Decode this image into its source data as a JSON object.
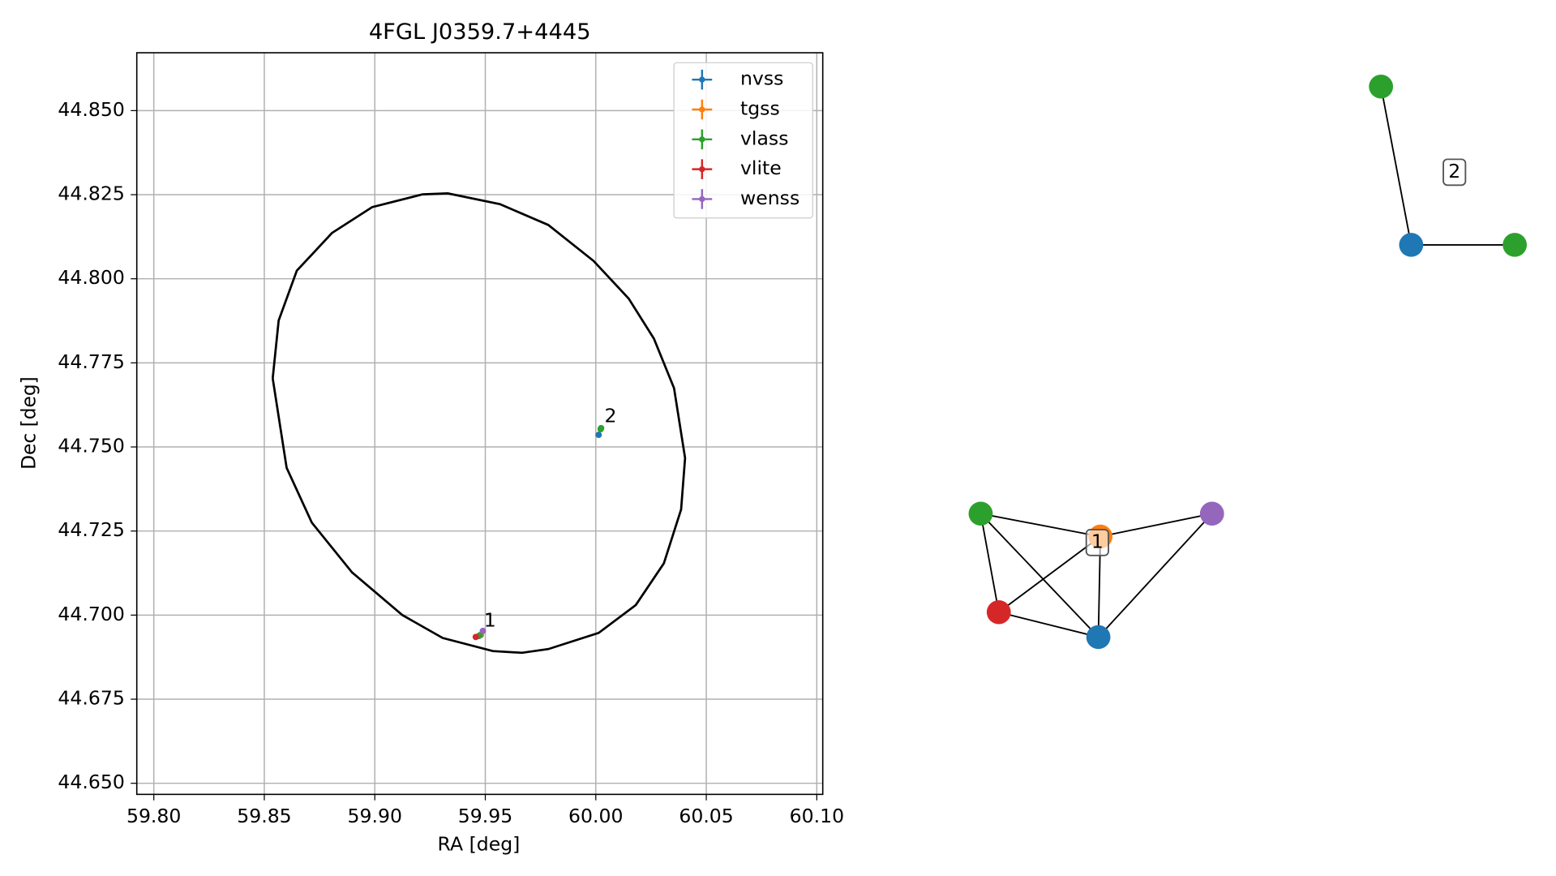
{
  "chart_data": [
    {
      "type": "scatter",
      "title": "4FGL J0359.7+4445",
      "x_label": "RA [deg]",
      "y_label": "Dec [deg]",
      "xlim": [
        59.7923,
        60.1027
      ],
      "ylim": [
        44.6467,
        44.8672
      ],
      "xticks": [
        {
          "value": 59.8,
          "label": "59.80"
        },
        {
          "value": 59.85,
          "label": "59.85"
        },
        {
          "value": 59.9,
          "label": "59.90"
        },
        {
          "value": 59.95,
          "label": "59.95"
        },
        {
          "value": 60.0,
          "label": "60.00"
        },
        {
          "value": 60.05,
          "label": "60.05"
        },
        {
          "value": 60.1,
          "label": "60.10"
        }
      ],
      "yticks": [
        {
          "value": 44.65,
          "label": "44.650"
        },
        {
          "value": 44.675,
          "label": "44.675"
        },
        {
          "value": 44.7,
          "label": "44.700"
        },
        {
          "value": 44.725,
          "label": "44.725"
        },
        {
          "value": 44.75,
          "label": "44.750"
        },
        {
          "value": 44.775,
          "label": "44.775"
        },
        {
          "value": 44.8,
          "label": "44.800"
        },
        {
          "value": 44.825,
          "label": "44.825"
        },
        {
          "value": 44.85,
          "label": "44.850"
        }
      ],
      "grid": true,
      "legend": "upper right",
      "series": [
        {
          "name": "nvss",
          "color": "#1f77b4",
          "x": [
            59.9471,
            60.0013
          ],
          "values": [
            44.6938,
            44.7536
          ]
        },
        {
          "name": "tgss",
          "color": "#ff7f0e",
          "x": [
            59.948
          ],
          "values": [
            44.6941
          ]
        },
        {
          "name": "vlass",
          "color": "#2ca02c",
          "x": [
            59.9475,
            60.0022,
            60.0024
          ],
          "values": [
            44.694,
            44.7553,
            44.7556
          ]
        },
        {
          "name": "vlite",
          "color": "#d62728",
          "x": [
            59.9457
          ],
          "values": [
            44.6935
          ]
        },
        {
          "name": "wenss",
          "color": "#9467bd",
          "x": [
            59.9489
          ],
          "values": [
            44.6953
          ]
        }
      ],
      "outline": {
        "color": "#000000",
        "x": [
          59.8538,
          59.8565,
          59.8647,
          59.8806,
          59.8988,
          59.9216,
          59.933,
          59.9566,
          59.9785,
          59.999,
          60.0149,
          60.0263,
          60.0354,
          60.0404,
          60.0386,
          60.0308,
          60.0181,
          60.0013,
          59.9785,
          59.9666,
          59.9534,
          59.9307,
          59.9125,
          59.8897,
          59.8715,
          59.8601,
          59.8538
        ],
        "y": [
          44.7704,
          44.7876,
          44.8024,
          44.8136,
          44.8213,
          44.8251,
          44.8254,
          44.8222,
          44.816,
          44.8053,
          44.7941,
          44.7822,
          44.7675,
          44.7467,
          44.7314,
          44.7154,
          44.703,
          44.6947,
          44.6899,
          44.6888,
          44.6893,
          44.6932,
          44.7,
          44.7127,
          44.7275,
          44.7438,
          44.7704
        ]
      },
      "annotations": [
        {
          "text": "1",
          "x": 59.9521,
          "y": 44.6982
        },
        {
          "text": "2",
          "x": 60.0067,
          "y": 44.7589
        }
      ]
    },
    {
      "type": "network",
      "groups": [
        {
          "label": "1",
          "nodes": [
            {
              "color": "#2ca02c"
            },
            {
              "color": "#ff7f0e"
            },
            {
              "color": "#9467bd"
            },
            {
              "color": "#d62728"
            },
            {
              "color": "#1f77b4"
            }
          ],
          "edges": [
            [
              0,
              1
            ],
            [
              1,
              2
            ],
            [
              0,
              3
            ],
            [
              0,
              4
            ],
            [
              3,
              1
            ],
            [
              3,
              4
            ],
            [
              1,
              4
            ],
            [
              2,
              4
            ]
          ]
        },
        {
          "label": "2",
          "nodes": [
            {
              "color": "#2ca02c"
            },
            {
              "color": "#1f77b4"
            },
            {
              "color": "#2ca02c"
            }
          ],
          "edges": [
            [
              0,
              1
            ],
            [
              1,
              2
            ]
          ]
        }
      ]
    }
  ]
}
